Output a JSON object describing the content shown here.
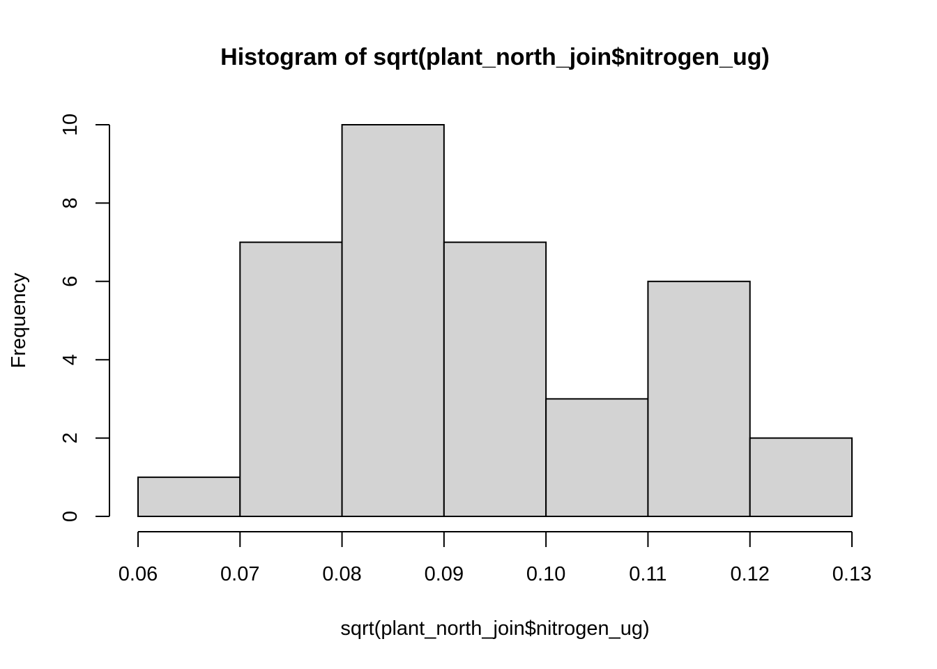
{
  "chart_data": {
    "type": "bar",
    "subtype": "histogram",
    "title": "Histogram of sqrt(plant_north_join$nitrogen_ug)",
    "xlabel": "sqrt(plant_north_join$nitrogen_ug)",
    "ylabel": "Frequency",
    "bins": [
      {
        "start": 0.06,
        "end": 0.07,
        "count": 1
      },
      {
        "start": 0.07,
        "end": 0.08,
        "count": 7
      },
      {
        "start": 0.08,
        "end": 0.09,
        "count": 10
      },
      {
        "start": 0.09,
        "end": 0.1,
        "count": 7
      },
      {
        "start": 0.1,
        "end": 0.11,
        "count": 3
      },
      {
        "start": 0.11,
        "end": 0.12,
        "count": 6
      },
      {
        "start": 0.12,
        "end": 0.13,
        "count": 2
      }
    ],
    "xlim": [
      0.06,
      0.13
    ],
    "ylim": [
      0,
      10
    ],
    "xticks": [
      "0.06",
      "0.07",
      "0.08",
      "0.09",
      "0.10",
      "0.11",
      "0.12",
      "0.13"
    ],
    "yticks": [
      "0",
      "2",
      "4",
      "6",
      "8",
      "10"
    ],
    "bar_color": "#d3d3d3",
    "edge_color": "#000000",
    "grid": false,
    "legend": false
  }
}
